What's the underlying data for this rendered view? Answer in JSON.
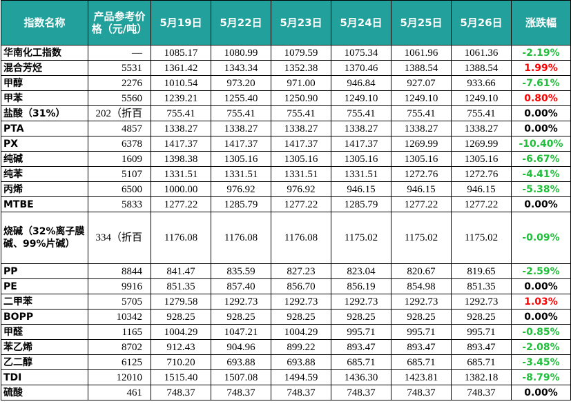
{
  "table": {
    "header": [
      "指数名称",
      "产品参考价格（元/吨）",
      "5月19日",
      "5月22日",
      "5月23日",
      "5月24日",
      "5月25日",
      "5月26日",
      "涨跌幅"
    ],
    "rows": [
      [
        "华南化工指数",
        "—",
        "1085.17",
        "1080.99",
        "1079.59",
        "1075.34",
        "1061.96",
        "1061.36",
        "-2.19%"
      ],
      [
        "混合芳烃",
        "5531",
        "1361.42",
        "1343.34",
        "1352.38",
        "1370.46",
        "1388.54",
        "1388.54",
        "1.99%"
      ],
      [
        "甲醇",
        "2276",
        "1010.54",
        "973.20",
        "971.00",
        "946.84",
        "927.07",
        "933.66",
        "-7.61%"
      ],
      [
        "甲苯",
        "5560",
        "1239.21",
        "1255.40",
        "1250.90",
        "1249.10",
        "1249.10",
        "1249.10",
        "0.80%"
      ],
      [
        "盐酸（31%）",
        "202（折百",
        "755.41",
        "755.41",
        "755.41",
        "755.41",
        "755.41",
        "755.41",
        "0.00%"
      ],
      [
        "PTA",
        "4857",
        "1338.27",
        "1338.27",
        "1338.27",
        "1338.27",
        "1338.27",
        "1338.27",
        "0.00%"
      ],
      [
        "PX",
        "6378",
        "1417.37",
        "1417.37",
        "1417.37",
        "1417.37",
        "1269.99",
        "1269.99",
        "-10.40%"
      ],
      [
        "纯碱",
        "1609",
        "1398.38",
        "1305.16",
        "1305.16",
        "1305.16",
        "1305.16",
        "1305.16",
        "-6.67%"
      ],
      [
        "纯苯",
        "5107",
        "1331.51",
        "1331.51",
        "1331.51",
        "1331.51",
        "1272.76",
        "1272.76",
        "-4.41%"
      ],
      [
        "丙烯",
        "6500",
        "1000.00",
        "976.92",
        "976.92",
        "946.15",
        "946.15",
        "946.15",
        "-5.38%"
      ],
      [
        "MTBE",
        "5833",
        "1277.22",
        "1285.79",
        "1277.22",
        "1285.79",
        "1277.22",
        "1277.22",
        "0.00%"
      ],
      [
        "烧碱（32%离子膜碱、99%片碱）",
        "334（折百",
        "1176.08",
        "1176.08",
        "1176.08",
        "1175.02",
        "1175.02",
        "1175.02",
        "-0.09%"
      ],
      [
        "PP",
        "8844",
        "841.47",
        "835.59",
        "827.23",
        "823.04",
        "820.67",
        "819.65",
        "-2.59%"
      ],
      [
        "PE",
        "9916",
        "851.35",
        "857.40",
        "856.70",
        "856.19",
        "854.98",
        "851.35",
        "0.00%"
      ],
      [
        "二甲苯",
        "5705",
        "1279.58",
        "1292.73",
        "1292.73",
        "1292.73",
        "1292.73",
        "1292.73",
        "1.03%"
      ],
      [
        "BOPP",
        "10342",
        "928.25",
        "928.25",
        "928.25",
        "928.25",
        "928.25",
        "928.25",
        "0.00%"
      ],
      [
        "甲醛",
        "1165",
        "1004.29",
        "1047.21",
        "1004.29",
        "995.71",
        "995.71",
        "995.71",
        "-0.85%"
      ],
      [
        "苯乙烯",
        "8702",
        "912.43",
        "904.96",
        "899.22",
        "893.47",
        "893.47",
        "893.47",
        "-2.08%"
      ],
      [
        "乙二醇",
        "6125",
        "710.20",
        "693.88",
        "693.88",
        "685.71",
        "685.71",
        "685.71",
        "-3.45%"
      ],
      [
        "TDI",
        "12010",
        "1515.40",
        "1507.08",
        "1494.59",
        "1436.30",
        "1423.81",
        "1382.18",
        "-8.79%"
      ],
      [
        "硫酸",
        "461",
        "748.37",
        "748.37",
        "748.37",
        "748.37",
        "748.37",
        "748.37",
        "0.00%"
      ]
    ]
  }
}
